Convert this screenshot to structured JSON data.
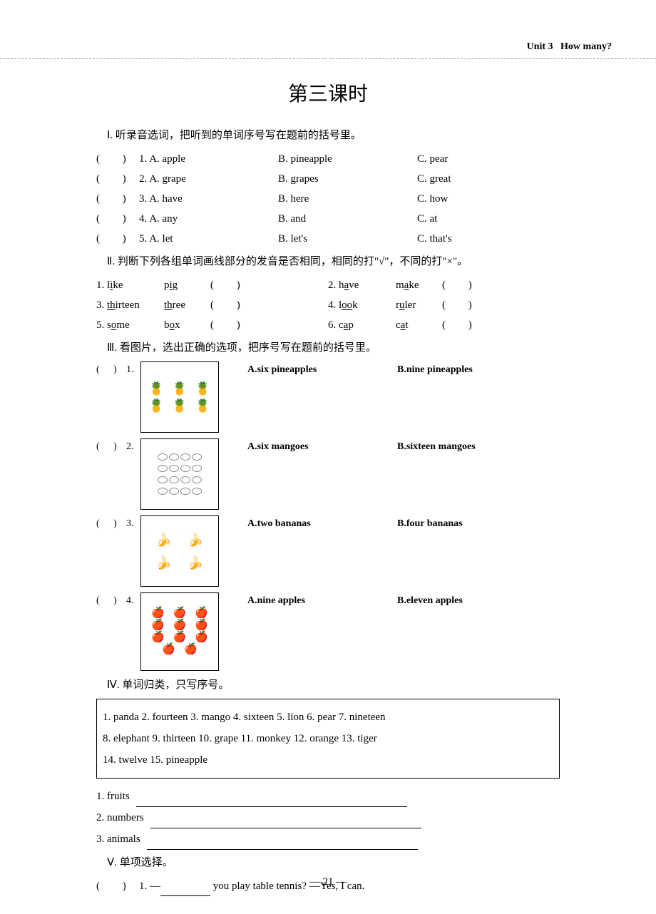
{
  "header": {
    "unit": "Unit 3",
    "title": "How many?"
  },
  "page_title": "第三课时",
  "page_number": "— 21 —",
  "s1": {
    "heading": "Ⅰ. 听录音选词，把听到的单词序号写在题前的括号里。",
    "rows": [
      {
        "n": "1.",
        "a": "A. apple",
        "b": "B. pineapple",
        "c": "C. pear"
      },
      {
        "n": "2.",
        "a": "A. grape",
        "b": "B. grapes",
        "c": "C. great"
      },
      {
        "n": "3.",
        "a": "A. have",
        "b": "B. here",
        "c": "C. how"
      },
      {
        "n": "4.",
        "a": "A. any",
        "b": "B. and",
        "c": "C. at"
      },
      {
        "n": "5.",
        "a": "A. let",
        "b": "B. let's",
        "c": "C. that's"
      }
    ]
  },
  "s2": {
    "heading": "Ⅱ. 判断下列各组单词画线部分的发音是否相同，相同的打\"√\"，不同的打\"×\"。",
    "rows": [
      {
        "l": {
          "n": "1.",
          "w1_pre": "l",
          "w1_u": "i",
          "w1_post": "ke",
          "w2_pre": "p",
          "w2_u": "i",
          "w2_post": "g"
        },
        "r": {
          "n": "2.",
          "w1_pre": "h",
          "w1_u": "a",
          "w1_post": "ve",
          "w2_pre": "m",
          "w2_u": "a",
          "w2_post": "ke"
        }
      },
      {
        "l": {
          "n": "3.",
          "w1_pre": "",
          "w1_u": "th",
          "w1_post": "irteen",
          "w2_pre": "",
          "w2_u": "th",
          "w2_post": "ree"
        },
        "r": {
          "n": "4.",
          "w1_pre": "l",
          "w1_u": "oo",
          "w1_post": "k",
          "w2_pre": "r",
          "w2_u": "u",
          "w2_post": "ler"
        }
      },
      {
        "l": {
          "n": "5.",
          "w1_pre": "s",
          "w1_u": "o",
          "w1_post": "me",
          "w2_pre": "b",
          "w2_u": "o",
          "w2_post": "x"
        },
        "r": {
          "n": "6.",
          "w1_pre": "c",
          "w1_u": "a",
          "w1_post": "p",
          "w2_pre": "c",
          "w2_u": "a",
          "w2_post": "t"
        }
      }
    ]
  },
  "s3": {
    "heading": "Ⅲ. 看图片，选出正确的选项，把序号写在题前的括号里。",
    "items": [
      {
        "n": "1.",
        "img": "pineapples-6",
        "a": "A.six  pineapples",
        "b": "B.nine  pineapples"
      },
      {
        "n": "2.",
        "img": "mangoes-16",
        "a": "A.six   mangoes",
        "b": "B.sixteen   mangoes"
      },
      {
        "n": "3.",
        "img": "bananas-4",
        "a": "A.two bananas",
        "b": "B.four bananas"
      },
      {
        "n": "4.",
        "img": "apples-11",
        "a": "A.nine   apples",
        "b": "B.eleven apples"
      }
    ]
  },
  "s4": {
    "heading": "Ⅳ. 单词归类，只写序号。",
    "box_line1": "1. panda   2. fourteen   3. mango   4. sixteen   5. lion   6. pear   7. nineteen",
    "box_line2": "8. elephant   9. thirteen   10. grape   11. monkey   12. orange   13. tiger",
    "box_line3": "14. twelve   15. pineapple",
    "cats": [
      {
        "label": "1. fruits"
      },
      {
        "label": "2. numbers"
      },
      {
        "label": "3. animals"
      }
    ]
  },
  "s5": {
    "heading": "Ⅴ. 单项选择。",
    "q1_pre": "1. —",
    "q1_post": " you play table tennis?  —Yes, I can."
  }
}
